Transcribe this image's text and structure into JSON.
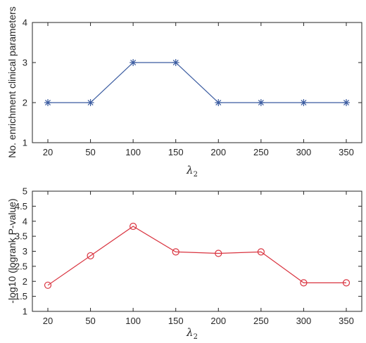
{
  "chart_data": [
    {
      "type": "line",
      "x": [
        20,
        50,
        100,
        150,
        200,
        250,
        300,
        350
      ],
      "categories": [
        "20",
        "50",
        "100",
        "150",
        "200",
        "250",
        "300",
        "350"
      ],
      "series": [
        {
          "values": [
            2,
            2,
            3,
            3,
            2,
            2,
            2,
            2
          ],
          "color": "#3a5ba0",
          "marker": "asterisk"
        }
      ],
      "xlabel": "λ",
      "xlabel_sub": "2",
      "ylabel": "No. enrichment clinical parameters",
      "ylim": [
        1,
        4
      ],
      "yticks": [
        "1",
        "2",
        "3",
        "4"
      ],
      "grid": false
    },
    {
      "type": "line",
      "x": [
        20,
        50,
        100,
        150,
        200,
        250,
        300,
        350
      ],
      "categories": [
        "20",
        "50",
        "100",
        "150",
        "200",
        "250",
        "300",
        "350"
      ],
      "series": [
        {
          "values": [
            1.87,
            2.85,
            3.83,
            2.98,
            2.93,
            2.98,
            1.95,
            1.95
          ],
          "color": "#d9333f",
          "marker": "circle"
        }
      ],
      "xlabel": "λ",
      "xlabel_sub": "2",
      "ylabel": "-log10 (logrank P-value)",
      "ylim": [
        1,
        5
      ],
      "yticks": [
        "1",
        "1.5",
        "2",
        "2.5",
        "3",
        "3.5",
        "4",
        "4.5",
        "5"
      ],
      "grid": false
    }
  ]
}
